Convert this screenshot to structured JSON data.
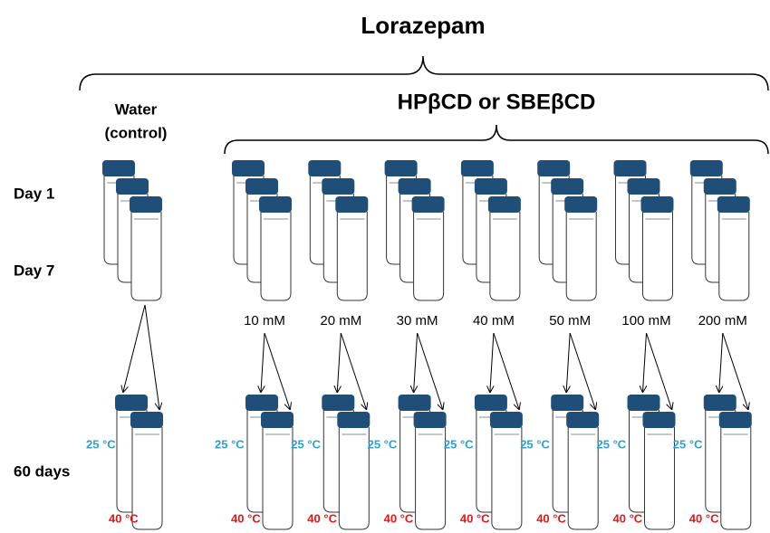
{
  "title": "Lorazepam",
  "control": {
    "line1": "Water",
    "line2": "(control)"
  },
  "treatment": "HPβCD or SBEβCD",
  "days": {
    "first": "Day 1",
    "second": "Day 7",
    "storage": "60 days"
  },
  "concentrations": [
    "10 mM",
    "20 mM",
    "30 mM",
    "40 mM",
    "50 mM",
    "100 mM",
    "200 mM"
  ],
  "temperatures": {
    "low": "25 °C",
    "high": "40 °C"
  }
}
